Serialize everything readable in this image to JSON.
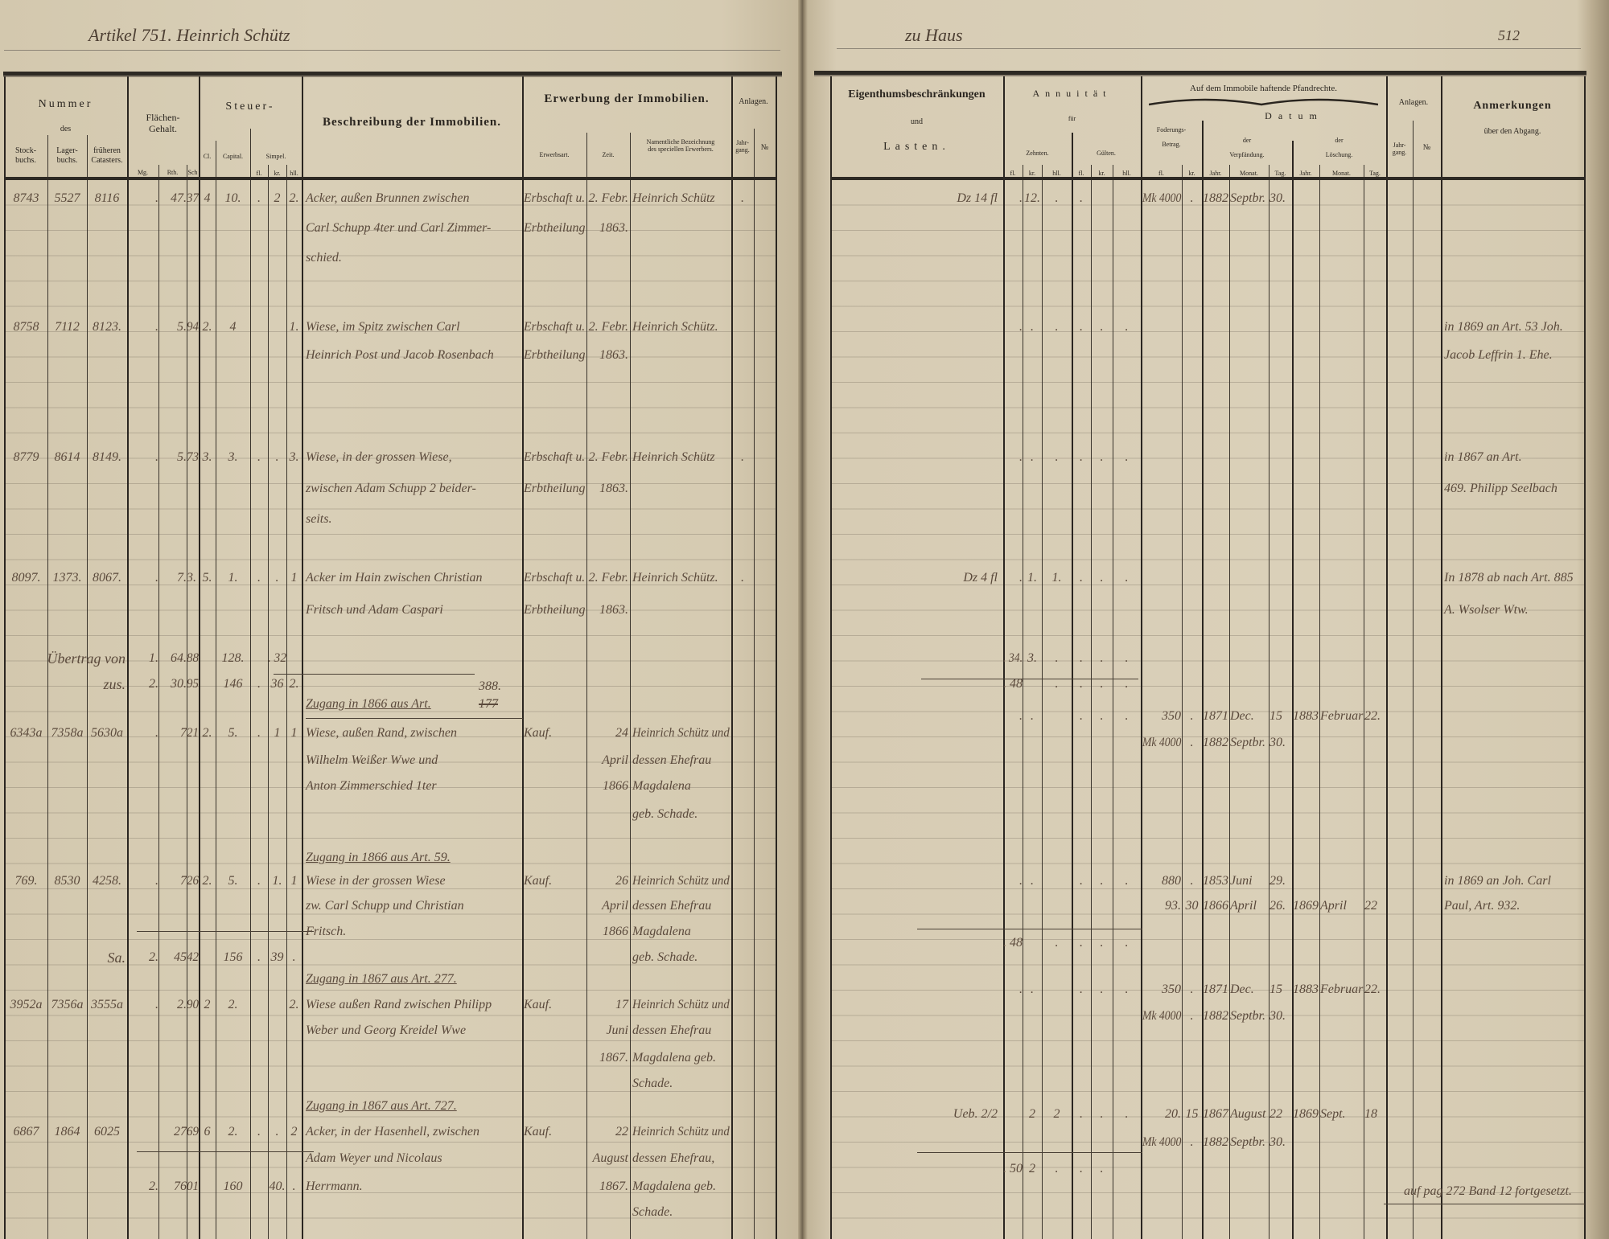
{
  "left_page": {
    "handwritten_title": "Artikel 751.  Heinrich Schütz",
    "header": {
      "nummer": "Nummer",
      "des": "des",
      "stockbuchs": [
        "Stock-",
        "buchs."
      ],
      "lagerbuchs": [
        "Lager-",
        "buchs."
      ],
      "frueheren_catasters": [
        "früheren",
        "Catasters."
      ],
      "flaechen_gehalt": [
        "Flächen-",
        "Gehalt."
      ],
      "flaechen_units": [
        "Mg.",
        "Rth.",
        "Sch"
      ],
      "steuer": "Steuer-",
      "steuer_cl": "Cl.",
      "steuer_capital": "Capital.",
      "steuer_simpel": "Simpel.",
      "simpel_units": [
        "fl.",
        "kr.",
        "hll."
      ],
      "beschreibung": "Beschreibung der Immobilien.",
      "erwerbung": "Erwerbung der Immobilien.",
      "erwerbsart": "Erwerbsart.",
      "zeit": "Zeit.",
      "erwerber": [
        "Namentliche Bezeichnung",
        "des speciellen Erwerbers."
      ],
      "anlagen": "Anlagen.",
      "jahrgang": [
        "Jahr-",
        "gang."
      ],
      "nr": "№"
    },
    "rows": [
      {
        "stock": "8743",
        "lager": "5527",
        "cataster": "8116",
        "mg": ".",
        "rth": "47.",
        "sch": "37",
        "cl": "4",
        "capital": "10.",
        "fl": ".",
        "kr": "2",
        "bll": "2.",
        "desc": "Acker, außen Brunnen zwischen",
        "art": "Erbschaft u.",
        "zeit": "2. Febr.",
        "erw": "Heinrich Schütz",
        "jg": "."
      },
      {
        "desc": "Carl Schupp 4ter und Carl Zimmer-",
        "art": "Erbtheilung",
        "zeit": "1863."
      },
      {
        "desc": "schied."
      },
      {
        "stock": "8758",
        "lager": "7112",
        "cataster": "8123.",
        "mg": ".",
        "rth": "5.",
        "sch": "94",
        "cl": "2.",
        "capital": "4",
        "bll": "1.",
        "desc": "Wiese, im Spitz zwischen Carl",
        "art": "Erbschaft u.",
        "zeit": "2. Febr.",
        "erw": "Heinrich Schütz."
      },
      {
        "desc": "Heinrich Post und Jacob Rosenbach",
        "art": "Erbtheilung",
        "zeit": "1863."
      },
      {
        "stock": "8779",
        "lager": "8614",
        "cataster": "8149.",
        "mg": ".",
        "rth": "5.",
        "sch": "73",
        "cl": "3.",
        "capital": "3.",
        "fl": ".",
        "kr": ".",
        "bll": "3.",
        "desc": "Wiese, in der grossen Wiese,",
        "art": "Erbschaft u.",
        "zeit": "2. Febr.",
        "erw": "Heinrich Schütz",
        "jg": "."
      },
      {
        "desc": "zwischen Adam Schupp 2 beider-",
        "art": "Erbtheilung",
        "zeit": "1863."
      },
      {
        "desc": "seits."
      },
      {
        "stock": "8097.",
        "lager": "1373.",
        "cataster": "8067.",
        "mg": ".",
        "rth": "7.",
        "sch": "3.",
        "cl": "5.",
        "capital": "1.",
        "fl": ".",
        "kr": ".",
        "bll": "1",
        "desc": "Acker im Hain zwischen Christian",
        "art": "Erbschaft u.",
        "zeit": "2. Febr.",
        "erw": "Heinrich Schütz.",
        "jg": "."
      },
      {
        "desc": "Fritsch und Adam Caspari",
        "art": "Erbtheilung",
        "zeit": "1863."
      },
      {
        "label": "Übertrag von",
        "mg": "1.",
        "rth": "64.",
        "sch": "88",
        "capital": "128.",
        "kr": ". 32"
      },
      {
        "label": "zus.",
        "mg": "2.",
        "rth": "30.",
        "sch": "95",
        "capital": "146",
        "fl": ".",
        "kr": "36",
        "bll": "2."
      },
      {
        "zugang": "Zugang in 1866 aus Art.",
        "zugang_struck": "177",
        "zugang_fix": "388."
      },
      {
        "stock": "6343a",
        "lager": "7358a",
        "cataster": "5630a",
        "mg": ".",
        "rth": "7",
        "sch": "21",
        "cl": "2.",
        "capital": "5.",
        "fl": ".",
        "kr": "1",
        "bll": "1",
        "desc": "Wiese, außen Rand, zwischen",
        "art": "Kauf.",
        "zeit": "24",
        "erw": "Heinrich Schütz und"
      },
      {
        "desc": "Wilhelm Weißer Wwe und",
        "zeit": "April",
        "erw": "dessen Ehefrau"
      },
      {
        "desc": "Anton Zimmerschied 1ter",
        "zeit": "1866",
        "erw": "Magdalena"
      },
      {
        "erw": "geb. Schade."
      },
      {
        "zugang": "Zugang in 1866 aus Art. 59."
      },
      {
        "stock": "769.",
        "lager": "8530",
        "cataster": "4258.",
        "mg": ".",
        "rth": "7",
        "sch": "26",
        "cl": "2.",
        "capital": "5.",
        "fl": ".",
        "kr": "1.",
        "bll": "1",
        "desc": "Wiese in der grossen Wiese",
        "art": "Kauf.",
        "zeit": "26",
        "erw": "Heinrich Schütz und"
      },
      {
        "desc": "zw. Carl Schupp und Christian",
        "zeit": "April",
        "erw": "dessen Ehefrau"
      },
      {
        "desc": "Fritsch.",
        "zeit": "1866",
        "erw": "Magdalena"
      },
      {
        "label": "Sa.",
        "mg": "2.",
        "rth": "45",
        "sch": "42",
        "capital": "156",
        "fl": ".",
        "kr": "39",
        "bll": ".",
        "erw": "geb. Schade."
      },
      {
        "zugang": "Zugang in 1867 aus Art. 277."
      },
      {
        "stock": "3952a",
        "lager": "7356a",
        "cataster": "3555a",
        "mg": ".",
        "rth": "2.",
        "sch": "90",
        "cl": "2",
        "capital": "2.",
        "bll": "2.",
        "desc": "Wiese außen Rand zwischen Philipp",
        "art": "Kauf.",
        "zeit": "17",
        "erw": "Heinrich Schütz und"
      },
      {
        "desc": "Weber und Georg Kreidel Wwe",
        "zeit": "Juni",
        "erw": "dessen Ehefrau"
      },
      {
        "zeit": "1867.",
        "erw": "Magdalena geb."
      },
      {
        "erw": "Schade."
      },
      {
        "zugang": "Zugang in 1867 aus Art. 727."
      },
      {
        "stock": "6867",
        "lager": "1864",
        "cataster": "6025",
        "rth": "27",
        "sch": "69",
        "cl": "6",
        "capital": "2.",
        "fl": ".",
        "kr": ".",
        "bll": "2",
        "desc": "Acker, in der Hasenhell, zwischen",
        "art": "Kauf.",
        "zeit": "22",
        "erw": "Heinrich Schütz und"
      },
      {
        "desc": "Adam Weyer und Nicolaus",
        "zeit": "August",
        "erw": "dessen Ehefrau,"
      },
      {
        "mg": "2.",
        "rth": "76",
        "sch": "01",
        "capital": "160",
        "kr": "40.",
        "bll": ".",
        "desc": "Herrmann.",
        "zeit": "1867.",
        "erw": "Magdalena geb."
      },
      {
        "erw": "Schade."
      }
    ]
  },
  "right_page": {
    "handwritten_note": "zu Haus",
    "page_number": "512",
    "header": {
      "eigenthum": "Eigenthumsbeschränkungen",
      "und": "und",
      "lasten": "Lasten.",
      "annuitaet": "Annuität",
      "fuer": "für",
      "zehnten": "Zehnten.",
      "gueltern": "Gülten.",
      "money_units": [
        "fl.",
        "kr.",
        "hll."
      ],
      "pfandrechte": "Auf dem Immobile haftende Pfandrechte.",
      "datum": "Datum",
      "forderung": [
        "Foderungs-",
        "Betrag."
      ],
      "forderung_units": [
        "fl.",
        "kr."
      ],
      "verpfaendung": [
        "der",
        "Verpfändung."
      ],
      "loeschung": [
        "der",
        "Löschung."
      ],
      "date_units": [
        "Jahr.",
        "Monat.",
        "Tag."
      ],
      "anlagen": "Anlagen.",
      "jahrgang": [
        "Jahr-",
        "gang."
      ],
      "nr": "№",
      "anmerkungen": "Anmerkungen",
      "ueber_abgang": "über den Abgang."
    },
    "rows": [
      {
        "eigen": "Dz 14 fl",
        "z_fl": ".",
        "z_kr": "12.",
        "z_bll": ".",
        "g_fl": ".",
        "f_fl": "Mk 4000",
        "f_kr": ".",
        "v_jahr": "1882",
        "v_monat": "Septbr.",
        "v_tag": "30."
      },
      {
        "z_fl": ".",
        "z_kr": ".",
        "z_bll": ".",
        "g_fl": ".",
        "g_kr": ".",
        "g_bll": ".",
        "anm": "in 1869 an Art. 53 Joh."
      },
      {
        "anm": "Jacob Leffrin 1. Ehe."
      },
      {
        "z_fl": ".",
        "z_kr": ".",
        "z_bll": ".",
        "g_fl": ".",
        "g_kr": ".",
        "g_bll": ".",
        "anm": "in 1867 an Art."
      },
      {
        "anm": "469. Philipp Seelbach"
      },
      {
        "eigen": "Dz 4 fl",
        "z_fl": ".",
        "z_kr": "1.",
        "z_bll": "1.",
        "g_fl": ".",
        "g_kr": ".",
        "g_bll": ".",
        "anm": "In 1878 ab nach Art. 885"
      },
      {
        "anm": "A. Wsolser Wtw."
      },
      {
        "z_fl": ". 34.",
        "z_kr": "3.",
        "z_bll": ".",
        "g_fl": ".",
        "g_kr": ".",
        "g_bll": "."
      },
      {
        "z_fl": ". 48",
        "z_bll": ".",
        "g_fl": ".",
        "g_kr": ".",
        "g_bll": "."
      },
      {
        "z_fl": ".",
        "z_kr": ".",
        "g_fl": ".",
        "g_kr": ".",
        "g_bll": ".",
        "f_fl": "350",
        "f_kr": ".",
        "v_jahr": "1871",
        "v_monat": "Dec.",
        "v_tag": "15",
        "l_jahr": "1883",
        "l_monat": "Februar",
        "l_tag": "22."
      },
      {
        "f_fl": "Mk 4000",
        "f_kr": ".",
        "v_jahr": "1882",
        "v_monat": "Septbr.",
        "v_tag": "30."
      },
      {
        "z_fl": ".",
        "z_kr": ".",
        "g_fl": ".",
        "g_kr": ".",
        "g_bll": ".",
        "f_fl": "880",
        "f_kr": ".",
        "v_jahr": "1853",
        "v_monat": "Juni",
        "v_tag": "29.",
        "anm": "in 1869 an Joh. Carl"
      },
      {
        "f_fl": "93.",
        "f_kr": "30",
        "v_jahr": "1866",
        "v_monat": "April",
        "v_tag": "26.",
        "l_jahr": "1869",
        "l_monat": "April",
        "l_tag": "22",
        "anm": "Paul, Art. 932."
      },
      {
        "z_fl": ". 48",
        "z_bll": ".",
        "g_fl": ".",
        "g_kr": ".",
        "g_bll": "."
      },
      {
        "z_fl": ".",
        "z_kr": ".",
        "g_fl": ".",
        "g_kr": ".",
        "g_bll": ".",
        "f_fl": "350",
        "f_kr": ".",
        "v_jahr": "1871",
        "v_monat": "Dec.",
        "v_tag": "15",
        "l_jahr": "1883",
        "l_monat": "Februar",
        "l_tag": "22."
      },
      {
        "f_fl": "Mk 4000",
        "f_kr": ".",
        "v_jahr": "1882",
        "v_monat": "Septbr.",
        "v_tag": "30."
      },
      {
        "eigen": "Ueb. 2/2",
        "z_kr": "2",
        "z_bll": "2",
        "g_fl": ".",
        "g_kr": ".",
        "g_bll": ".",
        "f_fl": "20.",
        "f_kr": "15",
        "v_jahr": "1867",
        "v_monat": "August",
        "v_tag": "22",
        "l_jahr": "1869",
        "l_monat": "Sept.",
        "l_tag": "18"
      },
      {
        "f_fl": "Mk 4000",
        "f_kr": ".",
        "v_jahr": "1882",
        "v_monat": "Septbr.",
        "v_tag": "30."
      },
      {
        "z_fl": ". 50",
        "z_kr": "2",
        "z_bll": ".",
        "g_fl": ".",
        "g_kr": "."
      },
      {
        "anm": "auf pag 272 Band 12 fortgesetzt."
      }
    ]
  }
}
